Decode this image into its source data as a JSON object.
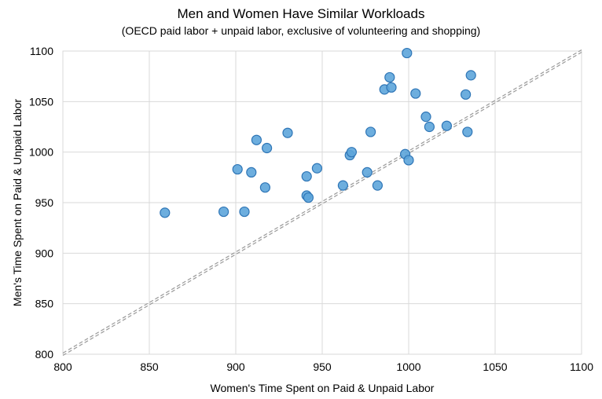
{
  "chart_data": {
    "type": "scatter",
    "title": "Men and Women Have Similar Workloads",
    "subtitle": "(OECD paid labor + unpaid labor, exclusive of volunteering and shopping)",
    "xlabel": "Women's Time Spent on Paid & Unpaid Labor",
    "ylabel": "Men's Time Spent on Paid & Unpaid Labor",
    "xlim": [
      800,
      1100
    ],
    "ylim": [
      800,
      1100
    ],
    "xticks": [
      "800",
      "850",
      "900",
      "950",
      "1000",
      "1050",
      "1100"
    ],
    "yticks": [
      "800",
      "850",
      "900",
      "950",
      "1000",
      "1050",
      "1100"
    ],
    "grid": true,
    "reference_line": "y = x (dashed)",
    "point_color": "#5DA5DA",
    "point_edge_color": "#2E75B6",
    "points": [
      {
        "x": 859,
        "y": 940
      },
      {
        "x": 893,
        "y": 941
      },
      {
        "x": 905,
        "y": 941
      },
      {
        "x": 901,
        "y": 983
      },
      {
        "x": 909,
        "y": 980
      },
      {
        "x": 912,
        "y": 1012
      },
      {
        "x": 917,
        "y": 965
      },
      {
        "x": 918,
        "y": 1004
      },
      {
        "x": 930,
        "y": 1019
      },
      {
        "x": 941,
        "y": 976
      },
      {
        "x": 941,
        "y": 957
      },
      {
        "x": 942,
        "y": 955
      },
      {
        "x": 947,
        "y": 984
      },
      {
        "x": 962,
        "y": 967
      },
      {
        "x": 966,
        "y": 997
      },
      {
        "x": 967,
        "y": 1000
      },
      {
        "x": 976,
        "y": 980
      },
      {
        "x": 978,
        "y": 1020
      },
      {
        "x": 982,
        "y": 967
      },
      {
        "x": 986,
        "y": 1062
      },
      {
        "x": 989,
        "y": 1074
      },
      {
        "x": 990,
        "y": 1064
      },
      {
        "x": 998,
        "y": 998
      },
      {
        "x": 999,
        "y": 1098
      },
      {
        "x": 1000,
        "y": 992
      },
      {
        "x": 1004,
        "y": 1058
      },
      {
        "x": 1010,
        "y": 1035
      },
      {
        "x": 1012,
        "y": 1025
      },
      {
        "x": 1022,
        "y": 1026
      },
      {
        "x": 1033,
        "y": 1057
      },
      {
        "x": 1034,
        "y": 1020
      },
      {
        "x": 1036,
        "y": 1076
      }
    ]
  }
}
